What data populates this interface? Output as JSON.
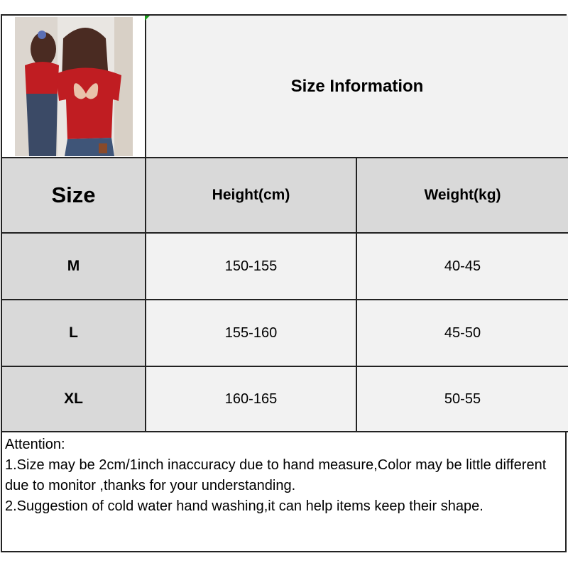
{
  "title": "Size Information",
  "product_image": "woman-in-red-butterfly-cutout-crop-top",
  "headers": [
    "Size",
    "Height(cm)",
    "Weight(kg)"
  ],
  "rows": [
    {
      "size": "M",
      "height": "150-155",
      "weight": "40-45"
    },
    {
      "size": "L",
      "height": "155-160",
      "weight": "45-50"
    },
    {
      "size": "XL",
      "height": "160-165",
      "weight": "50-55"
    }
  ],
  "notes": {
    "heading": "Attention:",
    "lines": [
      "1.Size may be 2cm/1inch inaccuracy due to hand measure,Color may be little different due to monitor ,thanks for your understanding.",
      "2.Suggestion of cold water hand washing,it can help items keep their shape."
    ]
  },
  "colors": {
    "header_bg": "#d9d9d9",
    "cell_bg": "#f2f2f2",
    "border": "#222222"
  }
}
